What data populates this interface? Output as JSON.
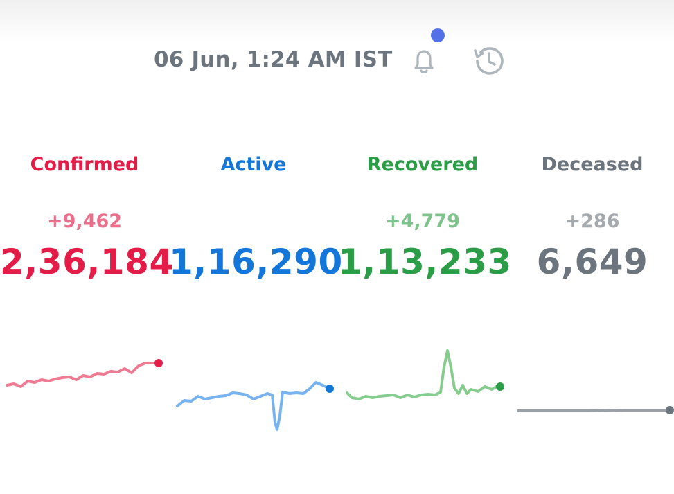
{
  "header": {
    "timestamp": "06 Jun, 1:24 AM IST",
    "notification_icon": "bell-icon",
    "notification_dot_color": "#5470e8",
    "history_icon": "history-clock-icon"
  },
  "stats": {
    "confirmed": {
      "label": "Confirmed",
      "delta": "+9,462",
      "total": "2,36,184",
      "color": "#e41d48",
      "spark_color": "#ee7b93"
    },
    "active": {
      "label": "Active",
      "delta": "",
      "total": "1,16,290",
      "color": "#1476d9",
      "spark_color": "#76b3ef"
    },
    "recovered": {
      "label": "Recovered",
      "delta": "+4,779",
      "total": "1,13,233",
      "color": "#2a9d46",
      "spark_color": "#86cc8e"
    },
    "deceased": {
      "label": "Deceased",
      "delta": "+286",
      "total": "6,649",
      "color": "#6c757d",
      "spark_color": "#9aa0a6"
    }
  }
}
